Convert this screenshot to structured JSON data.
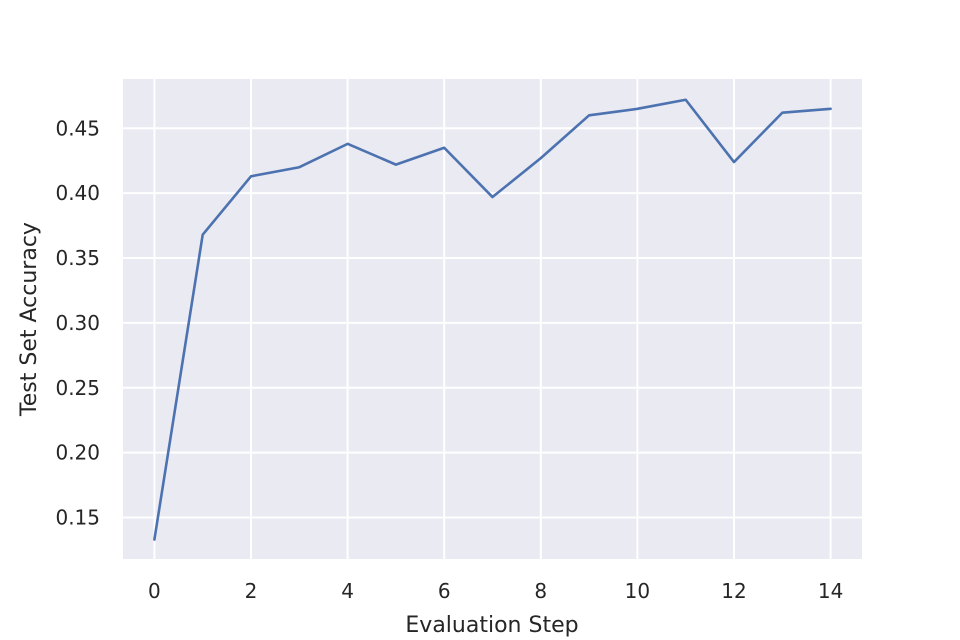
{
  "chart_data": {
    "type": "line",
    "title": "",
    "xlabel": "Evaluation Step",
    "ylabel": "Test Set Accuracy",
    "xlim": [
      -0.65,
      14.65
    ],
    "ylim": [
      0.118,
      0.488
    ],
    "xticks": [
      0,
      2,
      4,
      6,
      8,
      10,
      12,
      14
    ],
    "xtick_labels": [
      "0",
      "2",
      "4",
      "6",
      "8",
      "10",
      "12",
      "14"
    ],
    "yticks": [
      0.15,
      0.2,
      0.25,
      0.3,
      0.35,
      0.4,
      0.45
    ],
    "ytick_labels": [
      "0.15",
      "0.20",
      "0.25",
      "0.30",
      "0.35",
      "0.40",
      "0.45"
    ],
    "grid": true,
    "background": "#eaeaf2",
    "series": [
      {
        "color": "#4c72b0",
        "x": [
          0,
          1,
          2,
          3,
          4,
          5,
          6,
          7,
          8,
          9,
          10,
          11,
          12,
          13,
          14
        ],
        "y": [
          0.133,
          0.368,
          0.413,
          0.42,
          0.438,
          0.422,
          0.435,
          0.397,
          0.427,
          0.46,
          0.465,
          0.472,
          0.424,
          0.462,
          0.465
        ]
      }
    ]
  }
}
